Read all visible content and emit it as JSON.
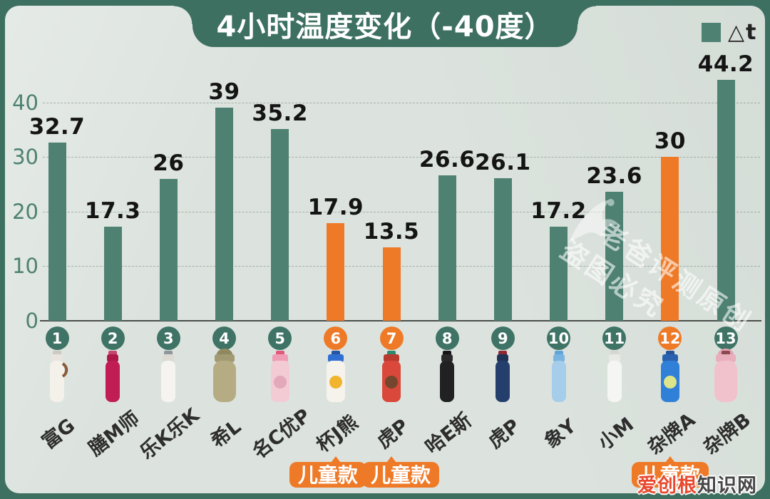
{
  "title": "4小时温度变化（-40度）",
  "legend": {
    "label": "△t"
  },
  "watermark": {
    "line1": "老爸评测原创",
    "line2": "盗图必究"
  },
  "site_watermark": {
    "part1": "爱创根",
    "part2": "知识网"
  },
  "badge_label": "儿童款",
  "colors": {
    "frame_green": "#3d7060",
    "bar_green": "#4e8172",
    "circle_green": "#3e7365",
    "highlight_orange": "#ee7a28",
    "background": "#dce3de",
    "ytick_green": "#4e8172",
    "value_black": "#141414"
  },
  "chart_data": {
    "type": "bar",
    "title": "4小时温度变化（-40度）",
    "legend_entries": [
      "△t"
    ],
    "categories": [
      "富G",
      "膳M师",
      "乐K乐K",
      "希L",
      "名C优P",
      "杯J熊",
      "虎P",
      "哈E斯",
      "虎P",
      "象Y",
      "小M",
      "杂牌A",
      "杂牌B"
    ],
    "indices": [
      1,
      2,
      3,
      4,
      5,
      6,
      7,
      8,
      9,
      10,
      11,
      12,
      13
    ],
    "values": [
      32.7,
      17.3,
      26,
      39,
      35.2,
      17.9,
      13.5,
      26.6,
      26.1,
      17.2,
      23.6,
      30,
      44.2
    ],
    "kids_models": [
      6,
      7,
      12
    ],
    "highlight_indices": [
      6,
      7,
      12
    ],
    "bar_color": "#4e8172",
    "highlight_color": "#ee7a28",
    "ylim": [
      0,
      45
    ],
    "yticks": [
      0,
      10,
      20,
      30,
      40
    ],
    "grid": true,
    "legend_position": "top-right"
  },
  "bottles": [
    {
      "name": "富G-bottle",
      "shape": "slim",
      "body": "#f4f1ea",
      "cap": "#e9e5de",
      "capTop": "#cfcabf",
      "strap": "#8a5a3a"
    },
    {
      "name": "膳M师-bottle",
      "shape": "slim",
      "body": "#bf1d54",
      "cap": "#ad1848",
      "capTop": "#c4466e"
    },
    {
      "name": "乐K乐K-bottle",
      "shape": "slim",
      "body": "#f5f4f0",
      "cap": "#dddad4",
      "capTop": "#8f979b"
    },
    {
      "name": "希L-bottle",
      "shape": "wide",
      "body": "#b5ac83",
      "cap": "#a29a72",
      "capTop": "#8f885f",
      "handle": "#938b60"
    },
    {
      "name": "名C优P-bottle",
      "shape": "medium",
      "body": "#f2cbd5",
      "cap": "#ef9db4",
      "capTop": "#e25878",
      "spot": "#e3a8ba"
    },
    {
      "name": "杯J熊-bottle",
      "shape": "medium",
      "body": "#f6f3ec",
      "cap": "#2f6fd2",
      "capTop": "#2455a4",
      "spot": "#f0b42e"
    },
    {
      "name": "虎P-kids-bottle",
      "shape": "medium",
      "body": "#d9483a",
      "cap": "#b93a2f",
      "capTop": "#2e8a6e",
      "spot": "#74462e"
    },
    {
      "name": "哈E斯-bottle",
      "shape": "slim",
      "body": "#212123",
      "cap": "#2a2a2c",
      "capTop": "#161618"
    },
    {
      "name": "虎P-bottle",
      "shape": "slim",
      "body": "#253f6d",
      "cap": "#1e3357",
      "capTop": "#8f2734"
    },
    {
      "name": "象Y-bottle",
      "shape": "slim",
      "body": "#a6cde9",
      "cap": "#79b5e0",
      "capTop": "#5fa5d8"
    },
    {
      "name": "小M-bottle",
      "shape": "slim",
      "body": "#f5f5f3",
      "cap": "#e9e9e6",
      "capTop": "#d6d6d2"
    },
    {
      "name": "杂牌A-bottle",
      "shape": "medium",
      "body": "#2f80d6",
      "cap": "#2a62b0",
      "capTop": "#245398",
      "spot": "#dde58a"
    },
    {
      "name": "杂牌B-bottle",
      "shape": "wide",
      "body": "#f1c2cc",
      "cap": "#e9afbc",
      "capTop": "#8a4a52",
      "handle": "#e5a2b2"
    }
  ]
}
